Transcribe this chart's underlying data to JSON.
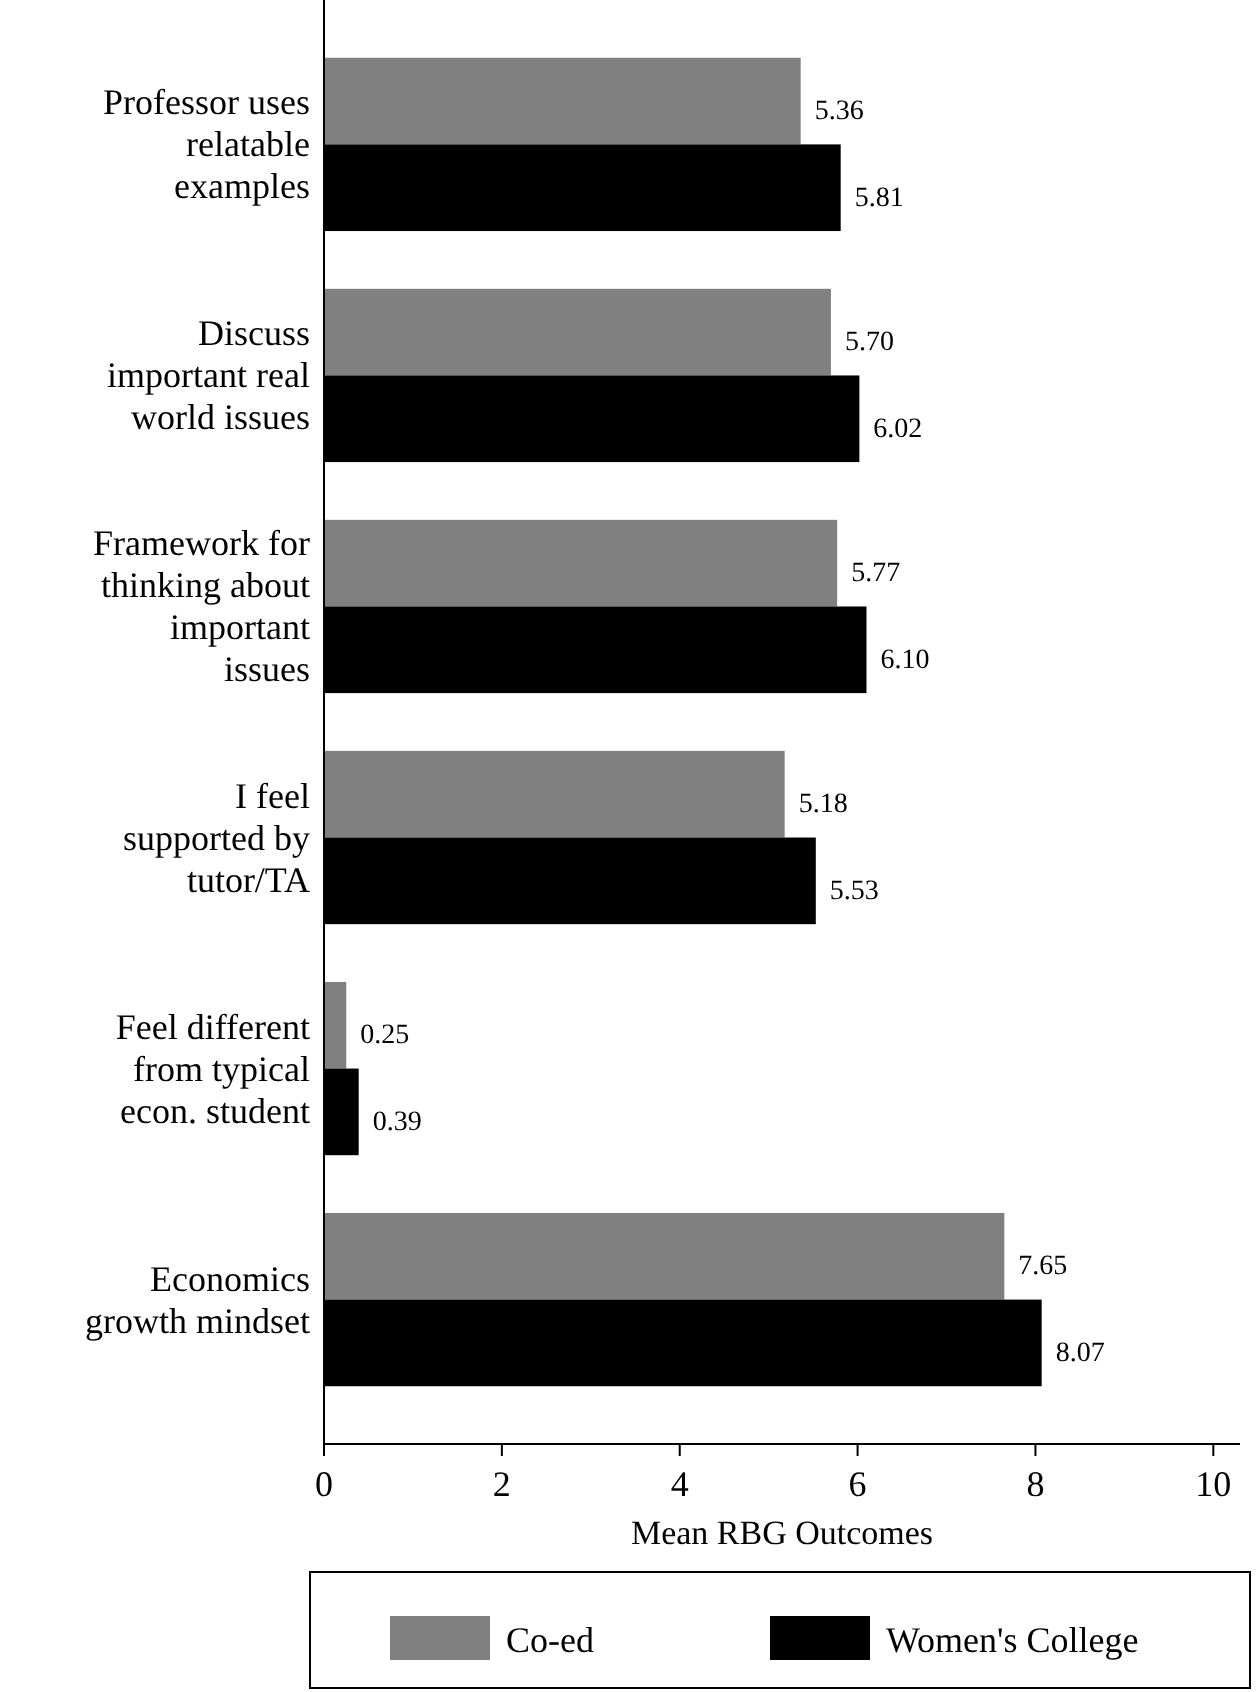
{
  "chart_data": {
    "type": "bar",
    "orientation": "horizontal",
    "xlabel": "Mean RBG Outcomes",
    "categories": [
      "Professor uses relatable examples",
      "Discuss important real world issues",
      "Framework for thinking about important issues",
      "I feel supported by tutor/TA",
      "Feel different from typical econ. student",
      "Economics growth mindset"
    ],
    "series": [
      {
        "name": "Co-ed",
        "color": "#808080",
        "values": [
          5.36,
          5.7,
          5.77,
          5.18,
          0.25,
          7.65
        ],
        "value_labels": [
          "5.36",
          "5.70",
          "5.77",
          "5.18",
          "0.25",
          "7.65"
        ]
      },
      {
        "name": "Women's College",
        "color": "#000000",
        "values": [
          5.81,
          6.02,
          6.1,
          5.53,
          0.39,
          8.07
        ],
        "value_labels": [
          "5.81",
          "6.02",
          "6.10",
          "5.53",
          "0.39",
          "8.07"
        ]
      }
    ],
    "xlim": [
      0,
      10.3
    ],
    "xticks": [
      0,
      2,
      4,
      6,
      8,
      10
    ],
    "grid": false,
    "legend": "bottom"
  }
}
